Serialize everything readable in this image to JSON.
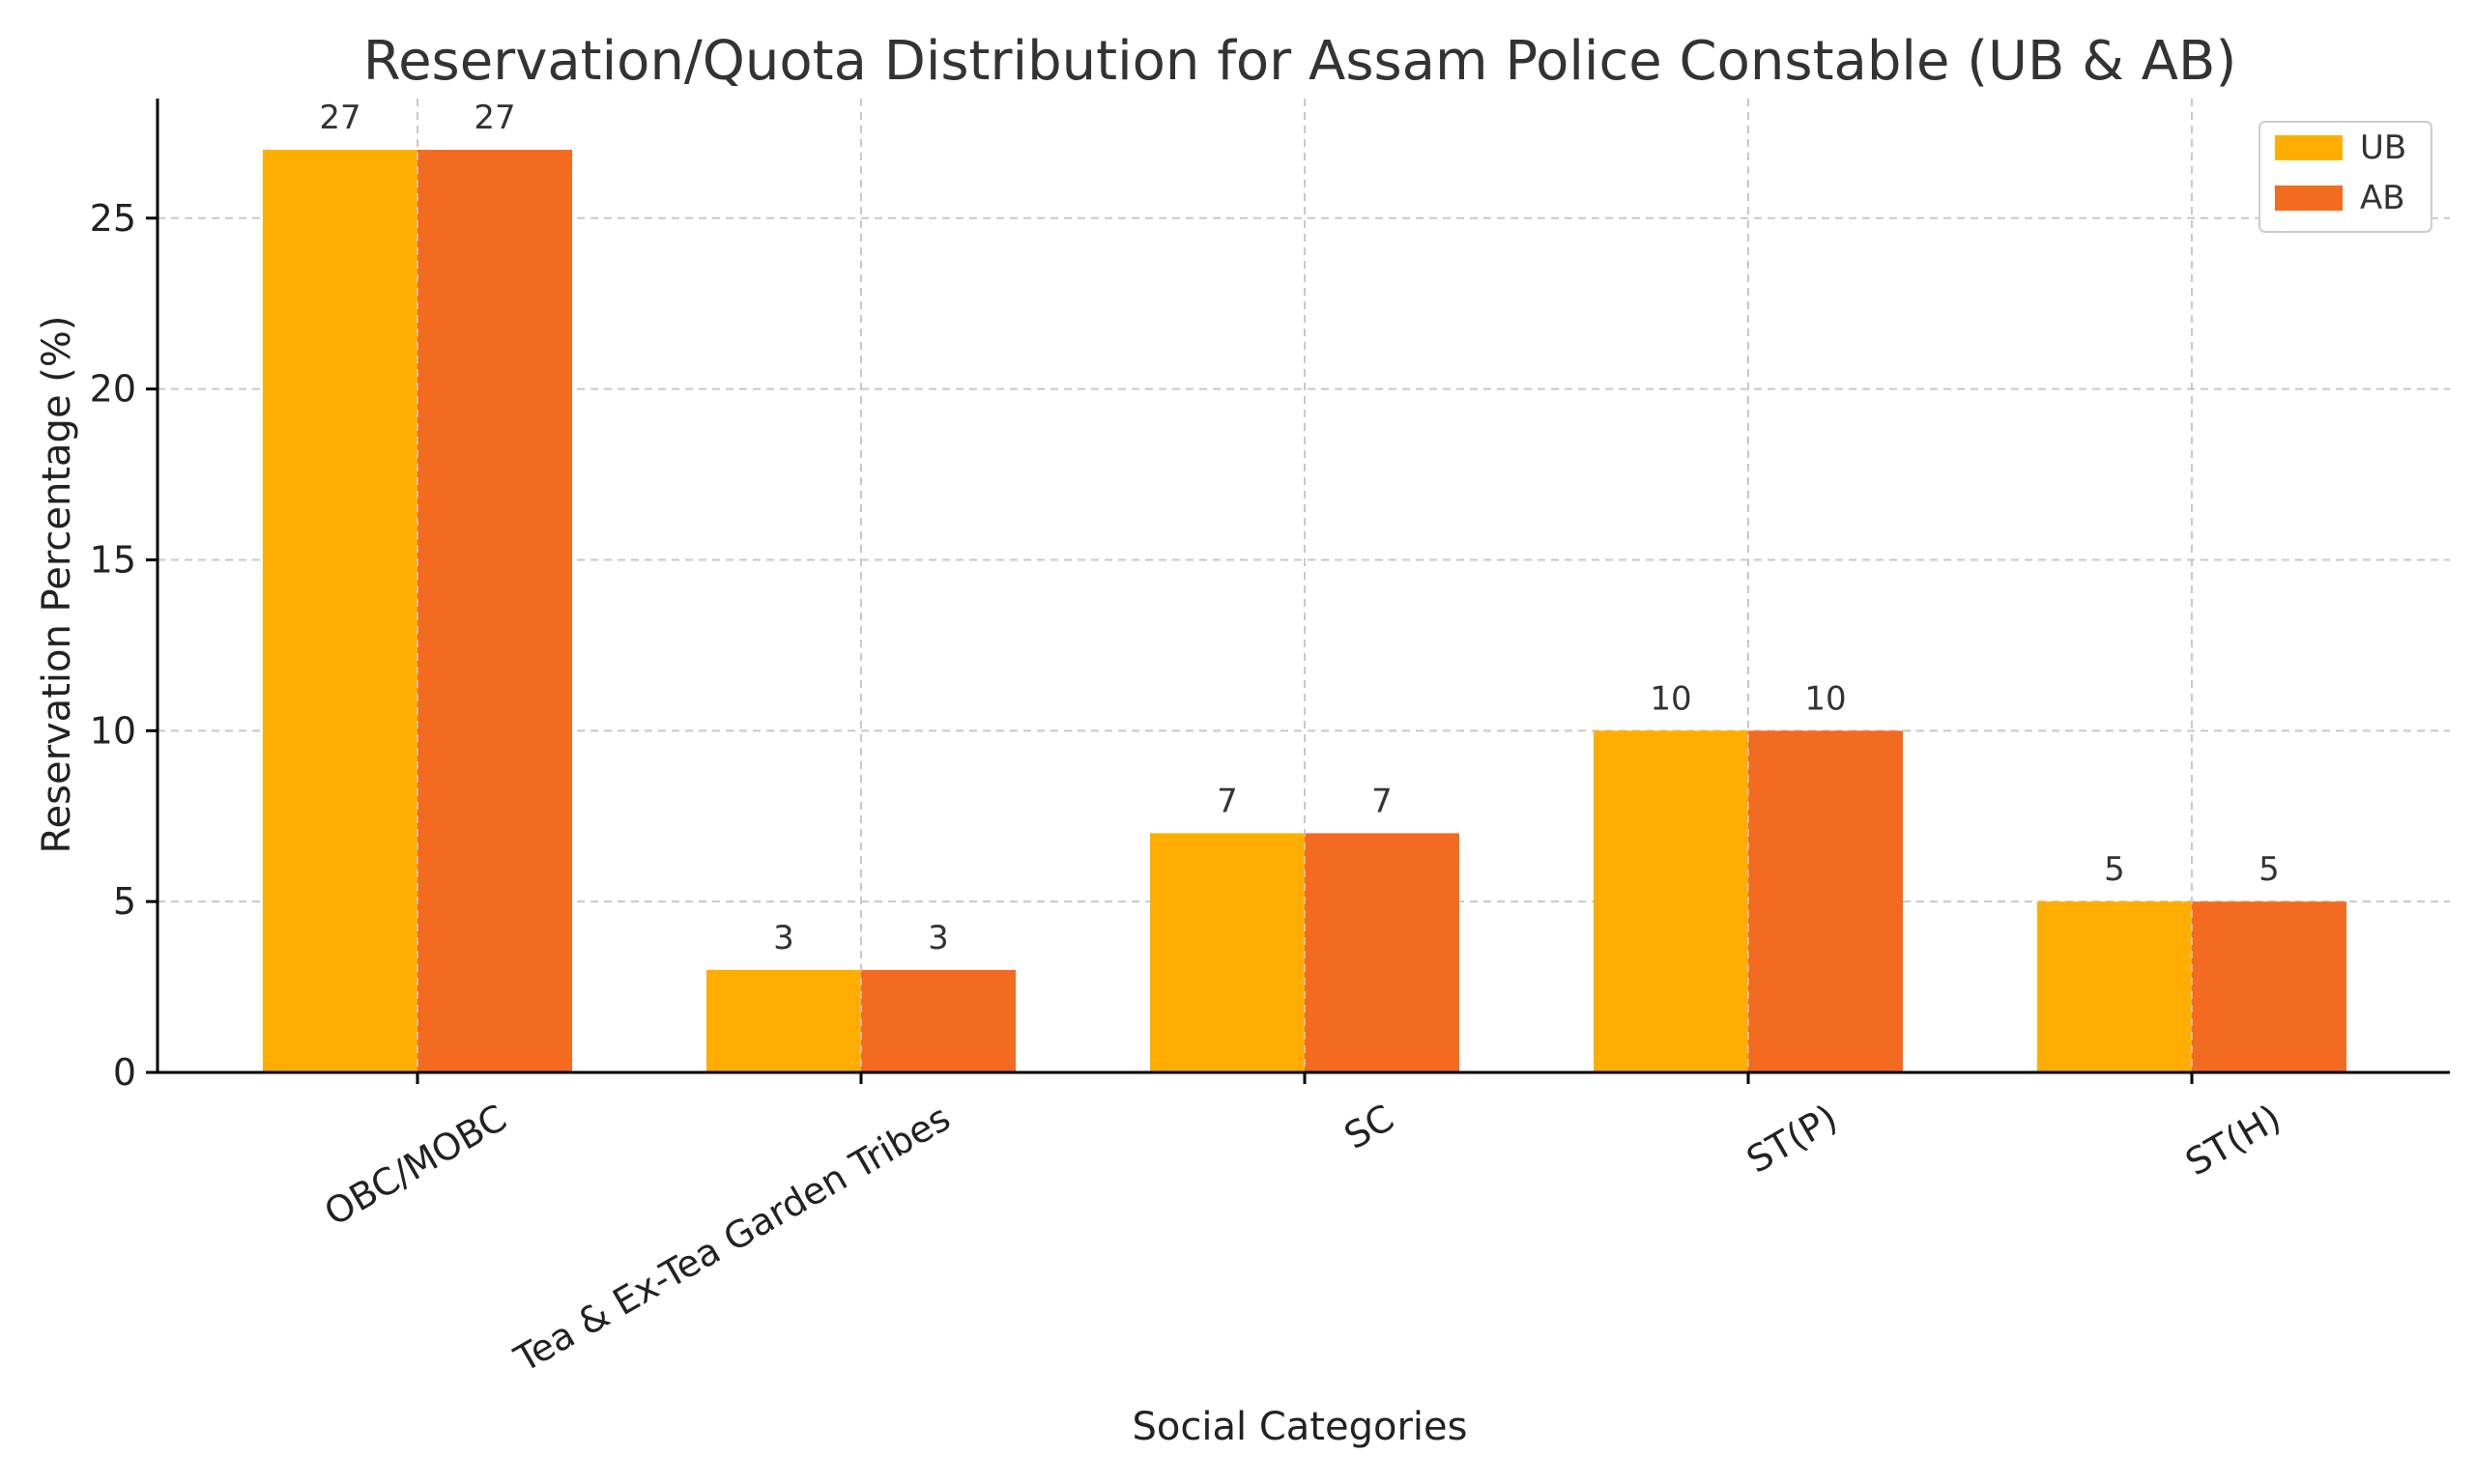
{
  "chart_data": {
    "type": "bar",
    "title": "Reservation/Quota Distribution for Assam Police Constable (UB & AB)",
    "xlabel": "Social Categories",
    "ylabel": "Reservation Percentage (%)",
    "categories": [
      "OBC/MOBC",
      "Tea & Ex-Tea Garden Tribes",
      "SC",
      "ST(P)",
      "ST(H)"
    ],
    "series": [
      {
        "name": "UB",
        "values": [
          27,
          3,
          7,
          10,
          5
        ],
        "color": "#FFAE00"
      },
      {
        "name": "AB",
        "values": [
          27,
          3,
          7,
          10,
          5
        ],
        "color": "#F26B21"
      }
    ],
    "ylim": [
      0,
      28.5
    ],
    "yticks": [
      0,
      5,
      10,
      15,
      20,
      25
    ],
    "grid": true,
    "legend_position": "top-right",
    "data_labels": true
  }
}
